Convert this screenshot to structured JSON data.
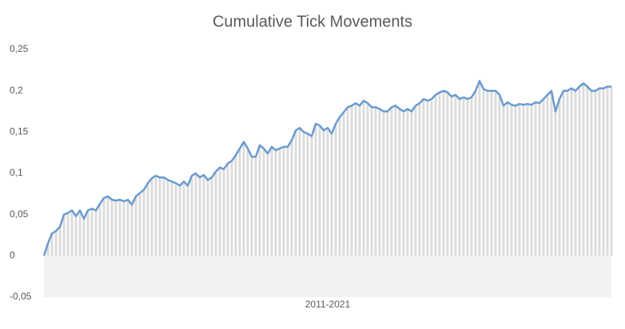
{
  "chart_data": {
    "type": "line",
    "title": "Cumulative Tick Movements",
    "x_label": "2011-2021",
    "color": "#6a9bd0",
    "area_color": "#dcdcdc",
    "values": [
      0,
      0.015,
      0.027,
      0.03,
      0.035,
      0.05,
      0.052,
      0.055,
      0.048,
      0.055,
      0.045,
      0.055,
      0.057,
      0.055,
      0.063,
      0.07,
      0.072,
      0.068,
      0.067,
      0.068,
      0.066,
      0.068,
      0.062,
      0.072,
      0.076,
      0.08,
      0.088,
      0.094,
      0.097,
      0.095,
      0.095,
      0.092,
      0.09,
      0.088,
      0.085,
      0.09,
      0.085,
      0.097,
      0.1,
      0.095,
      0.098,
      0.092,
      0.095,
      0.102,
      0.107,
      0.105,
      0.112,
      0.115,
      0.122,
      0.13,
      0.138,
      0.13,
      0.12,
      0.12,
      0.134,
      0.13,
      0.124,
      0.132,
      0.128,
      0.13,
      0.132,
      0.132,
      0.14,
      0.152,
      0.155,
      0.15,
      0.148,
      0.145,
      0.16,
      0.158,
      0.152,
      0.155,
      0.148,
      0.16,
      0.168,
      0.174,
      0.18,
      0.182,
      0.185,
      0.182,
      0.188,
      0.185,
      0.18,
      0.18,
      0.178,
      0.175,
      0.175,
      0.18,
      0.182,
      0.178,
      0.175,
      0.178,
      0.175,
      0.182,
      0.185,
      0.19,
      0.188,
      0.19,
      0.195,
      0.198,
      0.2,
      0.198,
      0.193,
      0.195,
      0.19,
      0.192,
      0.19,
      0.192,
      0.2,
      0.212,
      0.202,
      0.2,
      0.2,
      0.2,
      0.195,
      0.182,
      0.186,
      0.183,
      0.182,
      0.184,
      0.183,
      0.184,
      0.183,
      0.186,
      0.185,
      0.19,
      0.195,
      0.2,
      0.175,
      0.19,
      0.2,
      0.2,
      0.203,
      0.2,
      0.205,
      0.209,
      0.205,
      0.2,
      0.2,
      0.203,
      0.203,
      0.205,
      0.205
    ],
    "ylim": [
      -0.05,
      0.25
    ],
    "yticks": [
      {
        "value": -0.05,
        "label": "-0,05"
      },
      0,
      {
        "value": 0.05,
        "label": "0,05"
      },
      {
        "value": 0.1,
        "label": "0,1"
      },
      {
        "value": 0.15,
        "label": "0,15"
      },
      {
        "value": 0.2,
        "label": "0,2"
      },
      {
        "value": 0.25,
        "label": "0,25"
      }
    ]
  }
}
